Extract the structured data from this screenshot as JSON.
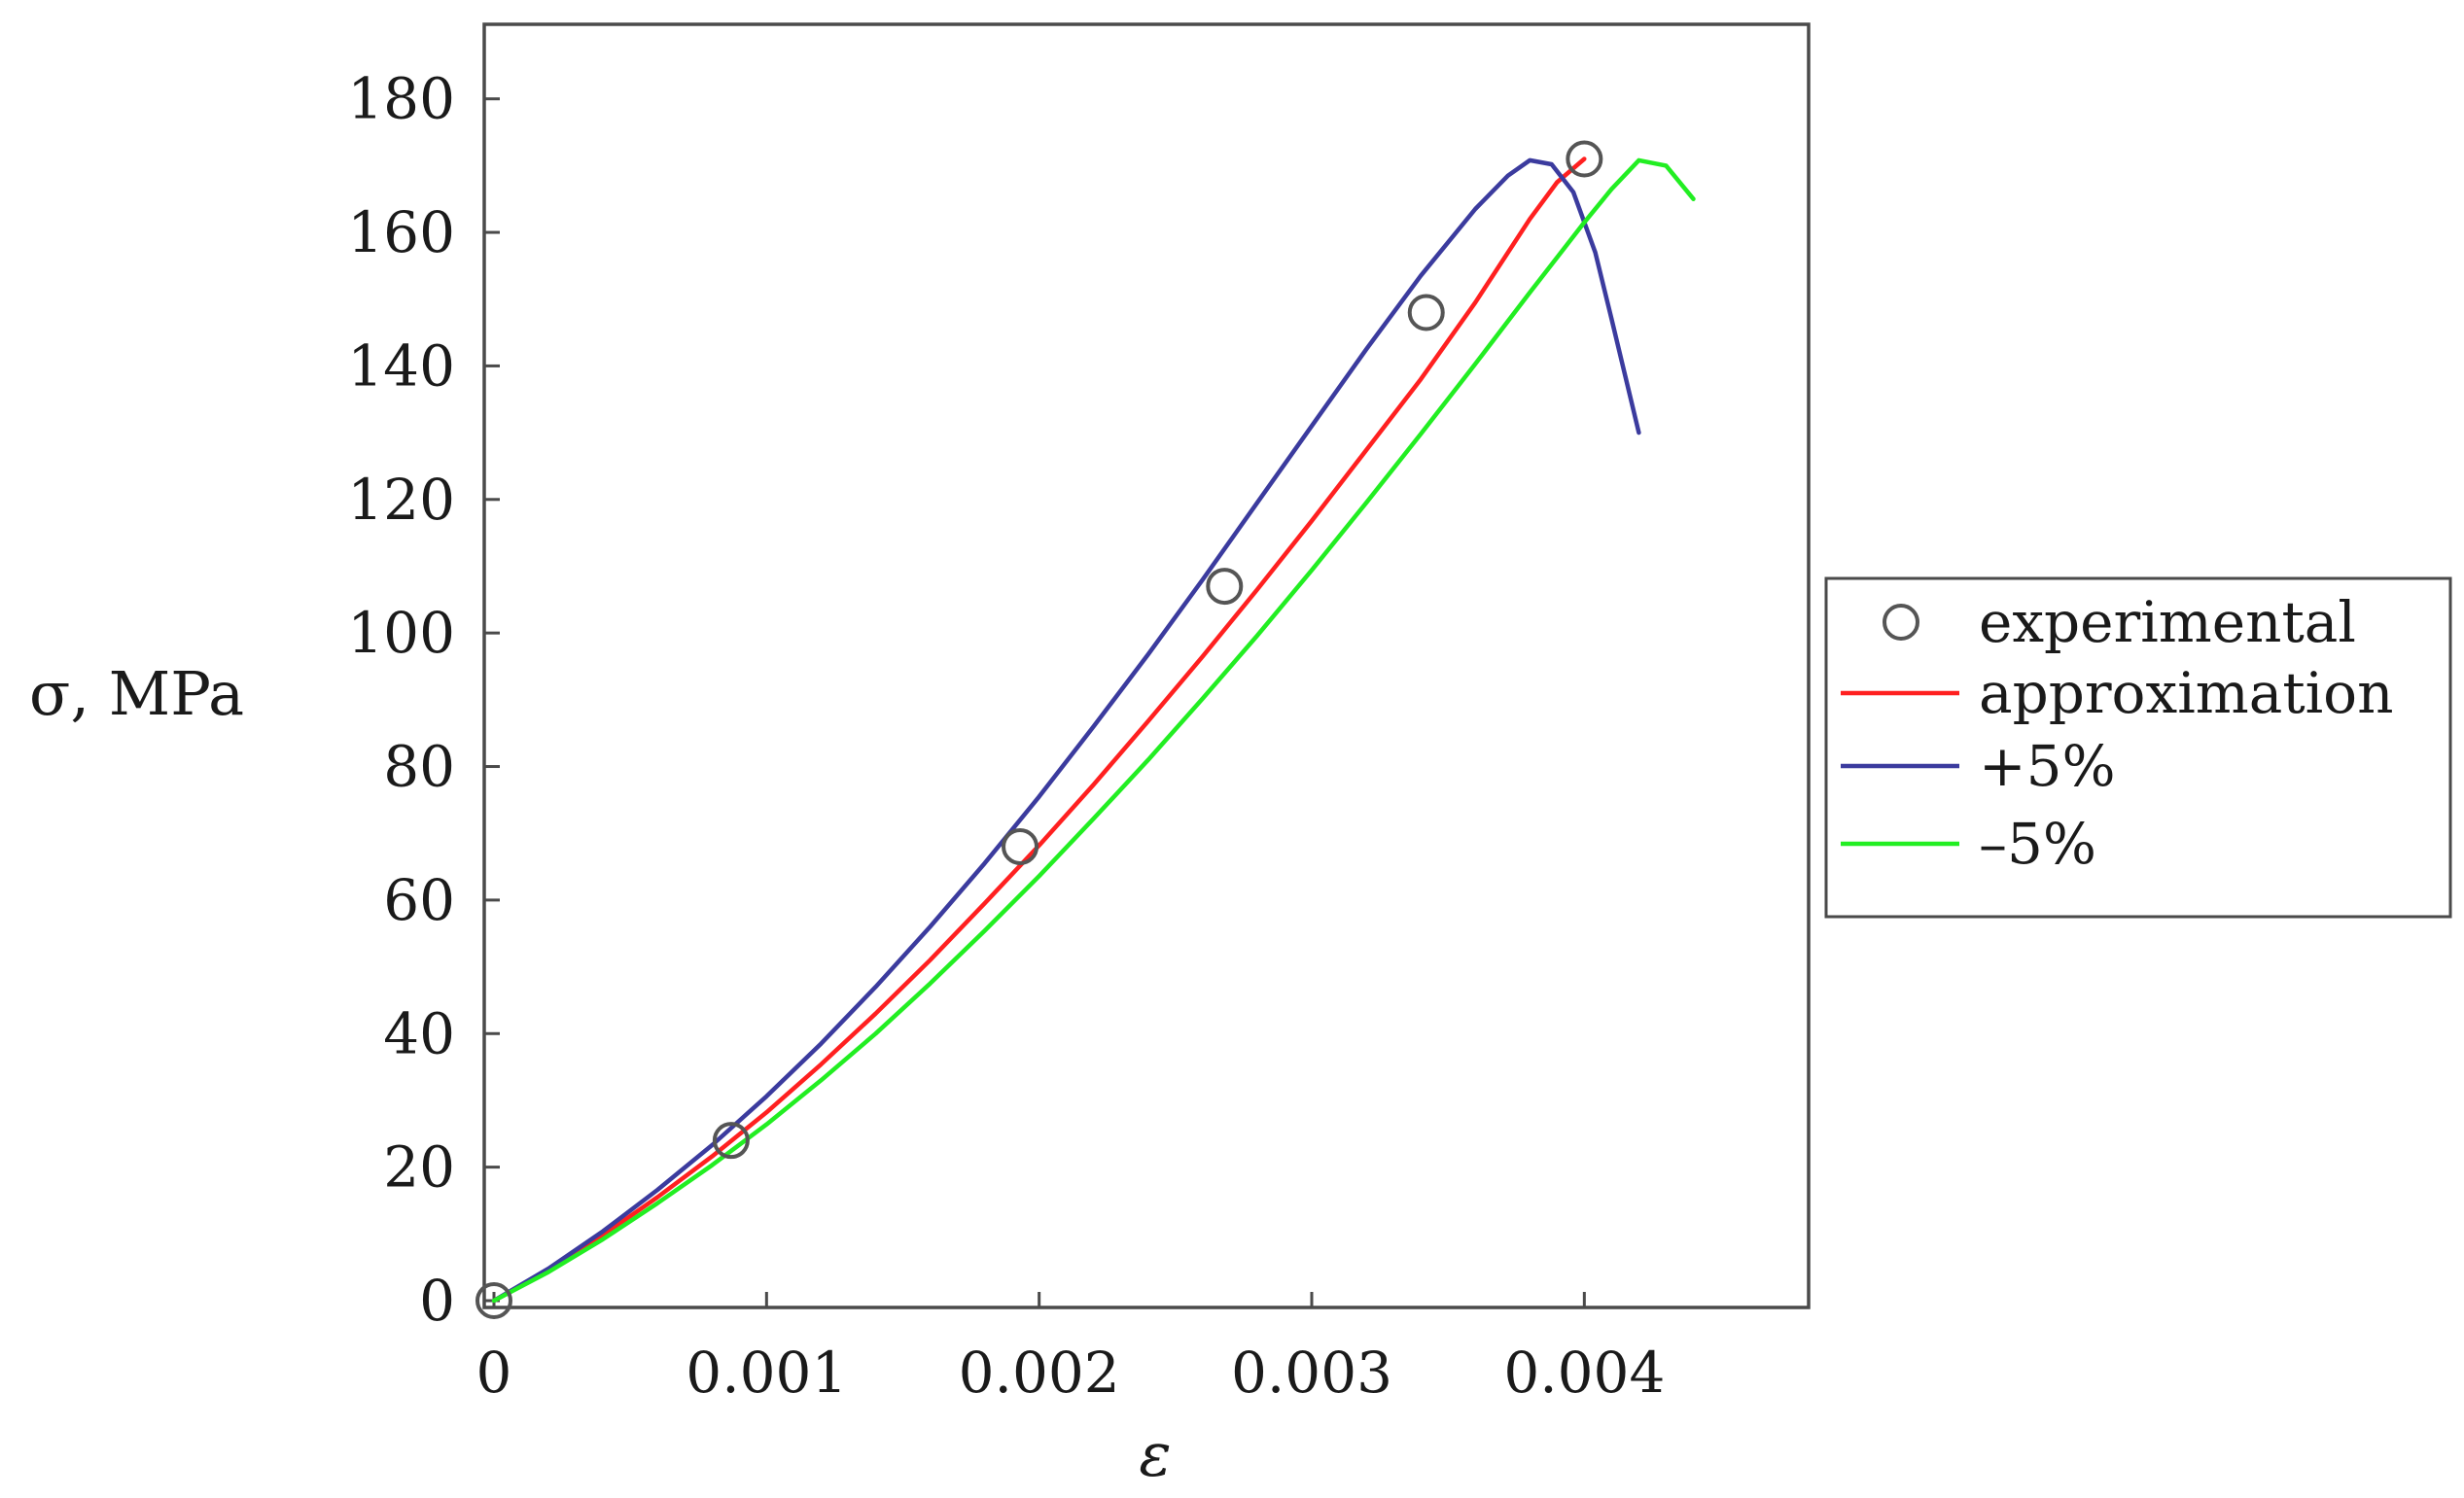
{
  "chart_data": {
    "type": "line",
    "xlabel": "ε",
    "ylabel": "σ, MPa",
    "xlim": [
      0,
      0.00478
    ],
    "ylim": [
      0,
      190
    ],
    "x_ticks": [
      0,
      0.001,
      0.002,
      0.003,
      0.004
    ],
    "x_tick_labels": [
      "0",
      "0.001",
      "0.002",
      "0.003",
      "0.004"
    ],
    "y_ticks": [
      0,
      20,
      40,
      60,
      80,
      100,
      120,
      140,
      160,
      180
    ],
    "y_tick_labels": [
      "0",
      "20",
      "40",
      "60",
      "80",
      "100",
      "120",
      "140",
      "160",
      "180"
    ],
    "grid": false,
    "legend_position": "right",
    "series": [
      {
        "name": "experimental",
        "style": "markers",
        "marker": "open-circle",
        "color": "#555555",
        "x": [
          0.0,
          0.00087,
          0.00193,
          0.00268,
          0.00342,
          0.004
        ],
        "y": [
          0,
          24,
          68,
          107,
          148,
          171
        ]
      },
      {
        "name": "approximation",
        "style": "line",
        "color": "#ff2020",
        "x": [
          0.0,
          0.0002,
          0.0004,
          0.0006,
          0.0008,
          0.001,
          0.0012,
          0.0014,
          0.0016,
          0.0018,
          0.002,
          0.0022,
          0.0024,
          0.0026,
          0.0028,
          0.003,
          0.0032,
          0.0034,
          0.0036,
          0.0038,
          0.0039,
          0.004
        ],
        "y": [
          0,
          4.5,
          9.8,
          15.5,
          21.6,
          28.2,
          35.4,
          43.0,
          51.0,
          59.5,
          68.2,
          77.3,
          86.8,
          96.5,
          106.5,
          116.8,
          127.4,
          138.0,
          149.5,
          162.0,
          167.5,
          171.0
        ]
      },
      {
        "name": "+5%",
        "style": "line",
        "color": "#3b3b9e",
        "x": [
          0.0,
          0.0002,
          0.0004,
          0.0006,
          0.0008,
          0.001,
          0.0012,
          0.0014,
          0.0016,
          0.0018,
          0.002,
          0.0022,
          0.0024,
          0.0026,
          0.0028,
          0.003,
          0.0032,
          0.0034,
          0.0036,
          0.00372,
          0.0038,
          0.00388,
          0.00396,
          0.00404,
          0.0041,
          0.00415,
          0.0042
        ],
        "y": [
          0,
          4.8,
          10.4,
          16.6,
          23.3,
          30.6,
          38.5,
          47.0,
          56.0,
          65.5,
          75.5,
          86.0,
          96.8,
          108.0,
          119.5,
          131.0,
          142.5,
          153.5,
          163.5,
          168.5,
          170.8,
          170.2,
          166.0,
          157.0,
          147.0,
          138.5,
          130.0
        ]
      },
      {
        "name": "–5%",
        "style": "line",
        "color": "#22ee22",
        "x": [
          0.0,
          0.0002,
          0.0004,
          0.0006,
          0.0008,
          0.001,
          0.0012,
          0.0014,
          0.0016,
          0.0018,
          0.002,
          0.0022,
          0.0024,
          0.0026,
          0.0028,
          0.003,
          0.0032,
          0.0034,
          0.0036,
          0.0038,
          0.004,
          0.0041,
          0.0042,
          0.0043,
          0.0044
        ],
        "y": [
          0,
          4.3,
          9.2,
          14.6,
          20.3,
          26.4,
          33.0,
          40.0,
          47.5,
          55.4,
          63.6,
          72.2,
          81.0,
          90.2,
          99.6,
          109.4,
          119.5,
          129.8,
          140.3,
          151.0,
          161.5,
          166.5,
          170.8,
          170.0,
          165.0
        ]
      }
    ]
  }
}
